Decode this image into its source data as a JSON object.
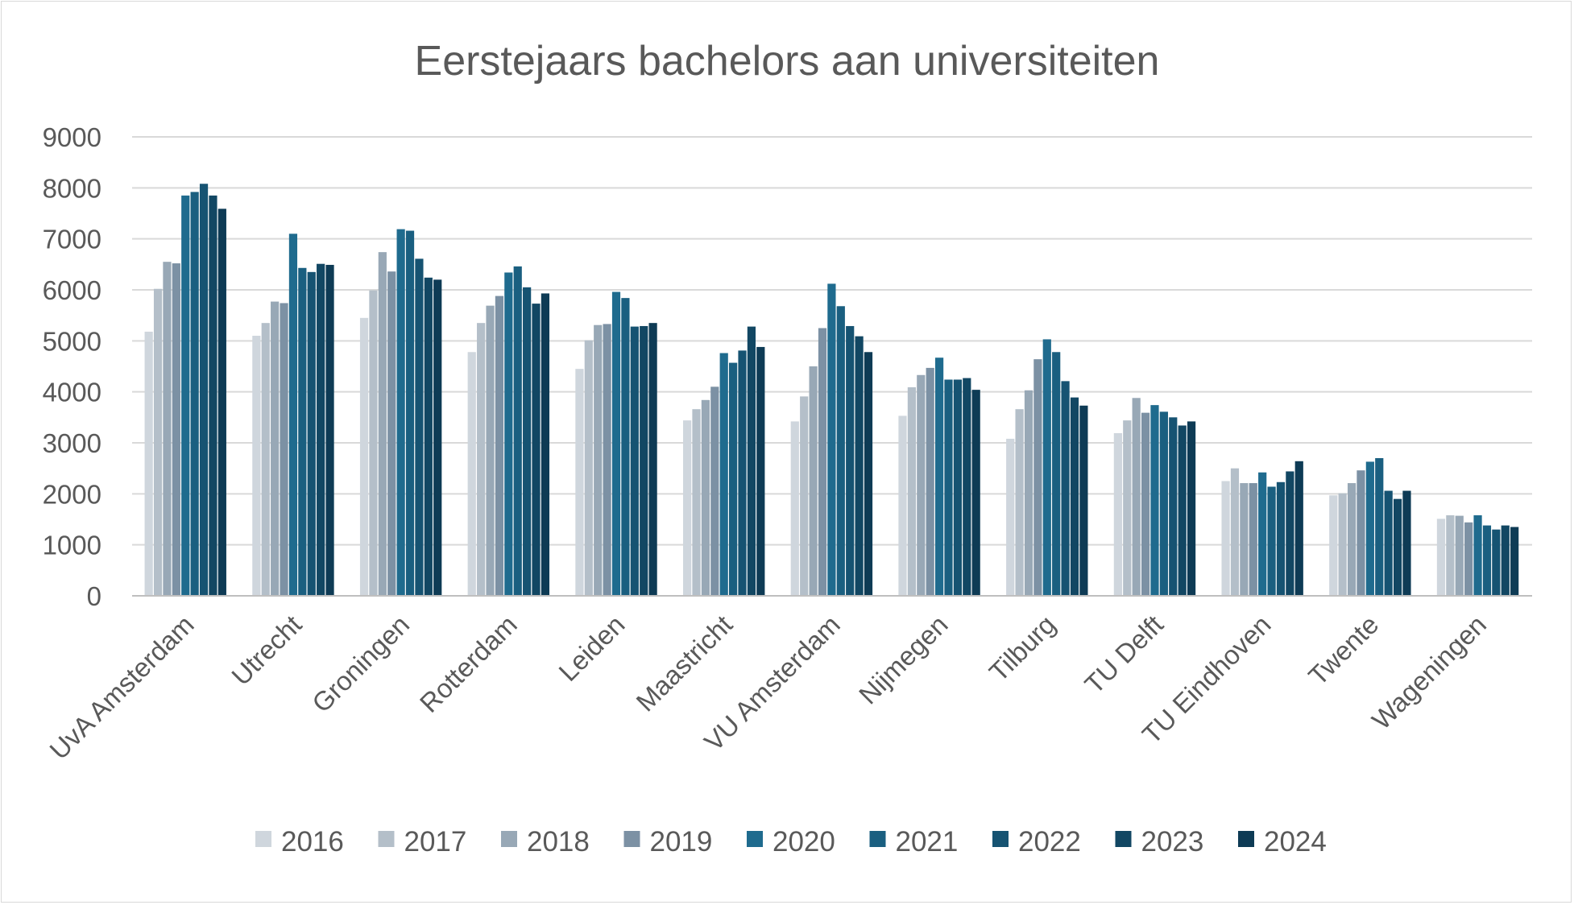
{
  "chart_data": {
    "type": "bar",
    "title": "Eerstejaars bachelors aan universiteiten",
    "xlabel": "",
    "ylabel": "",
    "ylim": [
      0,
      9000
    ],
    "yticks": [
      0,
      1000,
      2000,
      3000,
      4000,
      5000,
      6000,
      7000,
      8000,
      9000
    ],
    "grid": true,
    "legend_position": "bottom",
    "categories": [
      "UvA Amsterdam",
      "Utrecht",
      "Groningen",
      "Rotterdam",
      "Leiden",
      "Maastricht",
      "VU Amsterdam",
      "Nijmegen",
      "Tilburg",
      "TU Delft",
      "TU Eindhoven",
      "Twente",
      "Wageningen"
    ],
    "series": [
      {
        "name": "2016",
        "color": "#cfd6dd",
        "values": [
          5180,
          5100,
          5450,
          4780,
          4450,
          3440,
          3420,
          3530,
          3080,
          3190,
          2250,
          1970,
          1510
        ]
      },
      {
        "name": "2017",
        "color": "#b4bfc9",
        "values": [
          6020,
          5350,
          5990,
          5350,
          5010,
          3660,
          3910,
          4090,
          3660,
          3440,
          2500,
          2010,
          1580
        ]
      },
      {
        "name": "2018",
        "color": "#98a8b6",
        "values": [
          6550,
          5770,
          6740,
          5690,
          5310,
          3840,
          4500,
          4330,
          4030,
          3880,
          2210,
          2210,
          1570
        ]
      },
      {
        "name": "2019",
        "color": "#7c91a4",
        "values": [
          6520,
          5740,
          6360,
          5880,
          5330,
          4100,
          5250,
          4470,
          4640,
          3590,
          2210,
          2460,
          1440
        ]
      },
      {
        "name": "2020",
        "color": "#1f6b8e",
        "values": [
          7850,
          7100,
          7190,
          6340,
          5960,
          4760,
          6120,
          4670,
          5030,
          3740,
          2420,
          2630,
          1580
        ]
      },
      {
        "name": "2021",
        "color": "#1a5f80",
        "values": [
          7920,
          6430,
          7160,
          6460,
          5840,
          4570,
          5680,
          4240,
          4780,
          3610,
          2140,
          2700,
          1380
        ]
      },
      {
        "name": "2022",
        "color": "#165372",
        "values": [
          8080,
          6350,
          6610,
          6050,
          5280,
          4810,
          5290,
          4240,
          4210,
          3500,
          2230,
          2060,
          1300
        ]
      },
      {
        "name": "2023",
        "color": "#124763",
        "values": [
          7850,
          6510,
          6240,
          5730,
          5290,
          5280,
          5090,
          4270,
          3890,
          3340,
          2440,
          1900,
          1380
        ]
      },
      {
        "name": "2024",
        "color": "#0e3b55",
        "values": [
          7590,
          6490,
          6200,
          5930,
          5350,
          4880,
          4780,
          4040,
          3730,
          3420,
          2640,
          2060,
          1350
        ]
      }
    ]
  }
}
